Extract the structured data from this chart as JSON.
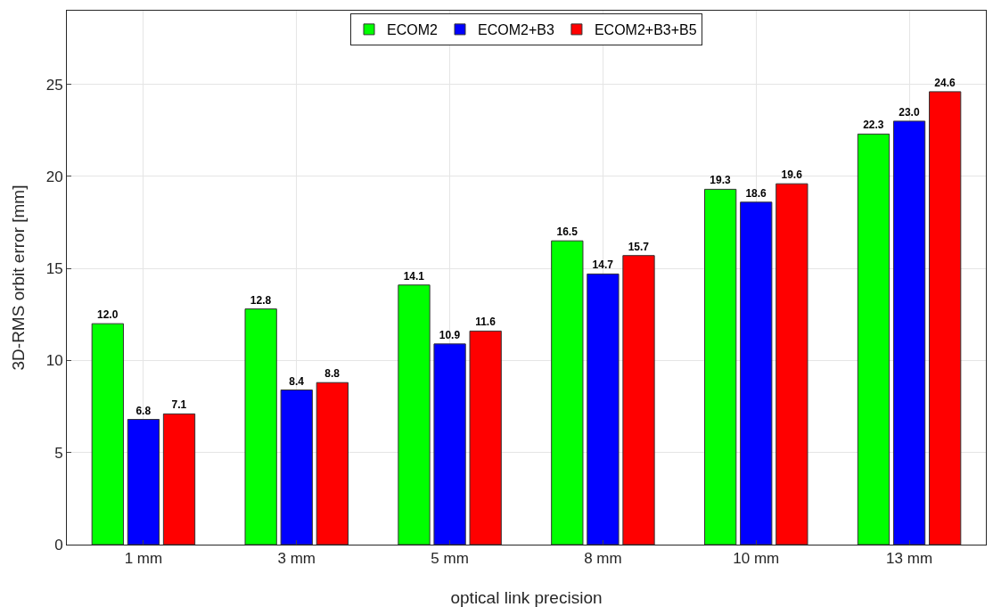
{
  "chart_data": {
    "type": "bar",
    "xlabel": "optical link precision",
    "ylabel": "3D-RMS orbit error [mm]",
    "categories": [
      "1 mm",
      "3 mm",
      "5 mm",
      "8 mm",
      "10 mm",
      "13 mm"
    ],
    "series": [
      {
        "name": "ECOM2",
        "color": "#00ff00",
        "values": [
          12.0,
          12.8,
          14.1,
          16.5,
          19.3,
          22.3
        ],
        "value_labels": [
          "12.0",
          "12.8",
          "14.1",
          "16.5",
          "19.3",
          "22.3"
        ]
      },
      {
        "name": "ECOM2+B3",
        "color": "#0000ff",
        "values": [
          6.8,
          8.4,
          10.9,
          14.7,
          18.6,
          23.0
        ],
        "value_labels": [
          "6.8",
          "8.4",
          "10.9",
          "14.7",
          "18.6",
          "23.0"
        ]
      },
      {
        "name": "ECOM2+B3+B5",
        "color": "#ff0000",
        "values": [
          7.1,
          8.8,
          11.6,
          15.7,
          19.6,
          24.6
        ],
        "value_labels": [
          "7.1",
          "8.8",
          "11.6",
          "15.7",
          "19.6",
          "24.6"
        ]
      }
    ],
    "ylim": [
      0,
      29
    ],
    "yticks": [
      0,
      5,
      10,
      15,
      20,
      25
    ],
    "grid": true,
    "legend": "top"
  }
}
